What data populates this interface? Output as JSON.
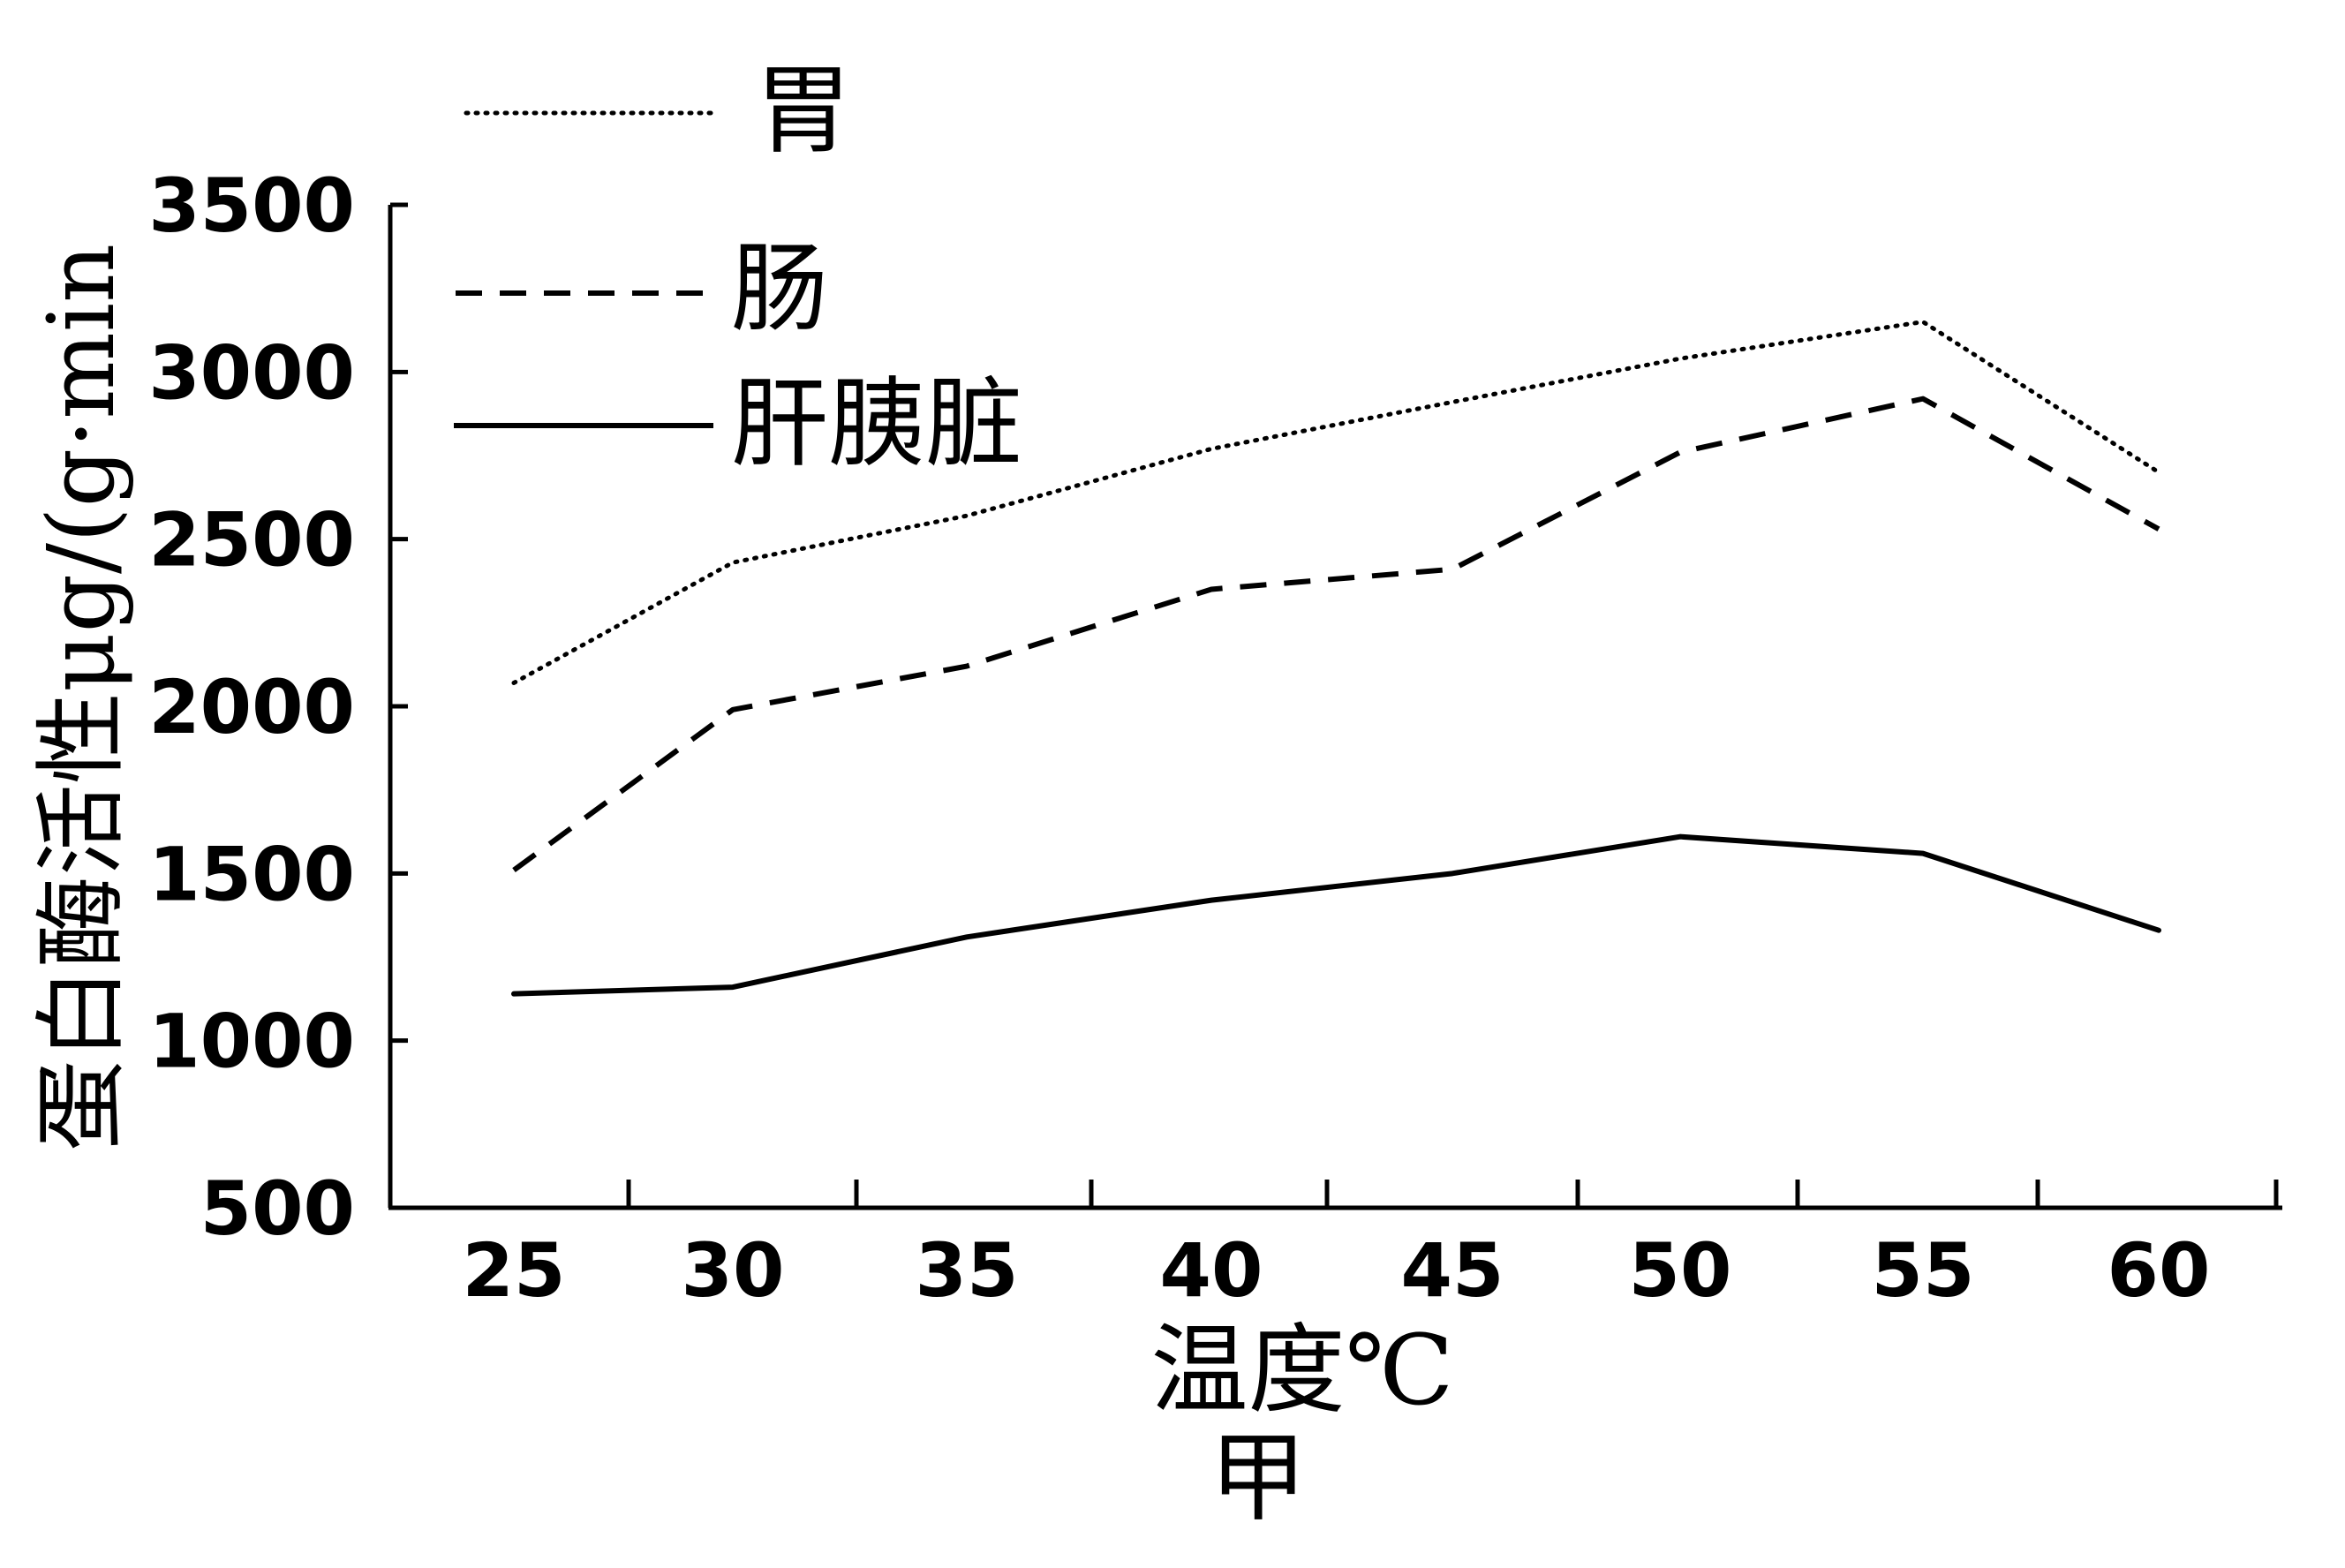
{
  "chart_data": {
    "type": "line",
    "title": "",
    "caption": "甲",
    "xlabel": "温度℃",
    "ylabel": "蛋白酶活性μg/(g·min",
    "x": [
      25,
      30,
      35,
      40,
      45,
      50,
      55,
      60
    ],
    "xticks": [
      "25",
      "30",
      "35",
      "40",
      "45",
      "50",
      "55",
      "60"
    ],
    "yticks": [
      "500",
      "1000",
      "1500",
      "2000",
      "2500",
      "3000",
      "3500"
    ],
    "ylim": [
      500,
      3500
    ],
    "grid": false,
    "legend_position": "top-left",
    "series": [
      {
        "name": "胃",
        "style": "dotted",
        "color": "#000000",
        "values": [
          2070,
          2430,
          2570,
          2770,
          2910,
          3040,
          3150,
          2700
        ]
      },
      {
        "name": "肠",
        "style": "dashed",
        "color": "#000000",
        "values": [
          1510,
          1990,
          2120,
          2350,
          2410,
          2760,
          2920,
          2530
        ]
      },
      {
        "name": "肝胰脏",
        "style": "solid",
        "color": "#000000",
        "values": [
          1140,
          1160,
          1310,
          1420,
          1500,
          1610,
          1560,
          1330
        ]
      }
    ]
  }
}
